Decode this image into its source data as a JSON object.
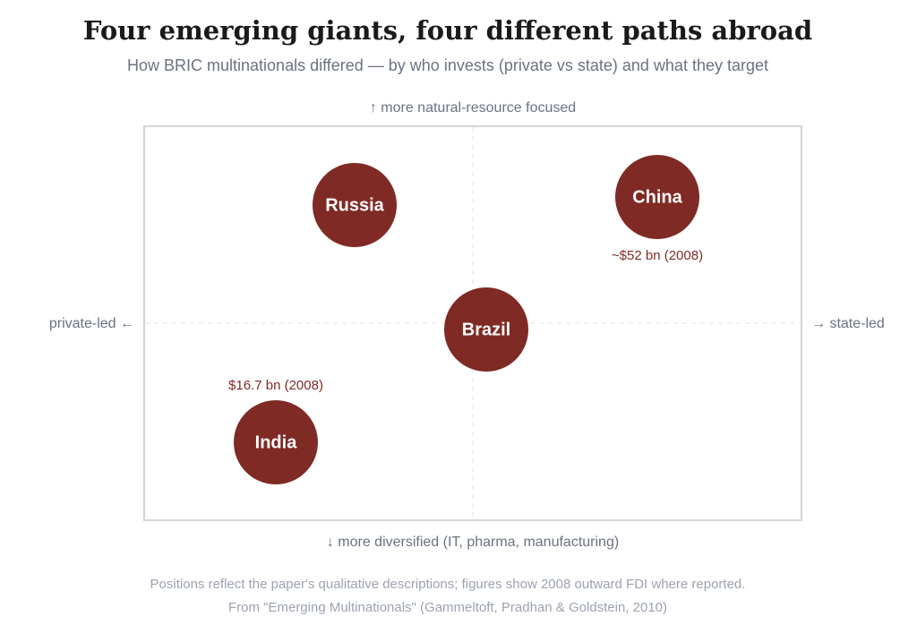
{
  "header": {
    "title": "Four emerging giants, four different paths abroad",
    "subtitle": "How BRIC multinationals differed — by who invests (private vs state) and what they target"
  },
  "axes": {
    "top": "↑ more natural-resource focused",
    "bottom": "↓ more diversified (IT, pharma, manufacturing)",
    "left": "private-led ←",
    "right": "→ state-led"
  },
  "nodes": [
    {
      "label": "Russia"
    },
    {
      "label": "China",
      "note": "~$52 bn (2008)"
    },
    {
      "label": "Brazil"
    },
    {
      "label": "India",
      "note": "$16.7 bn (2008)"
    }
  ],
  "footer": {
    "note": "Positions reflect the paper's qualitative descriptions; figures show 2008 outward FDI where reported.",
    "source": "From \"Emerging Multinationals\" (Gammeltoft, Pradhan & Goldstein, 2010)"
  }
}
